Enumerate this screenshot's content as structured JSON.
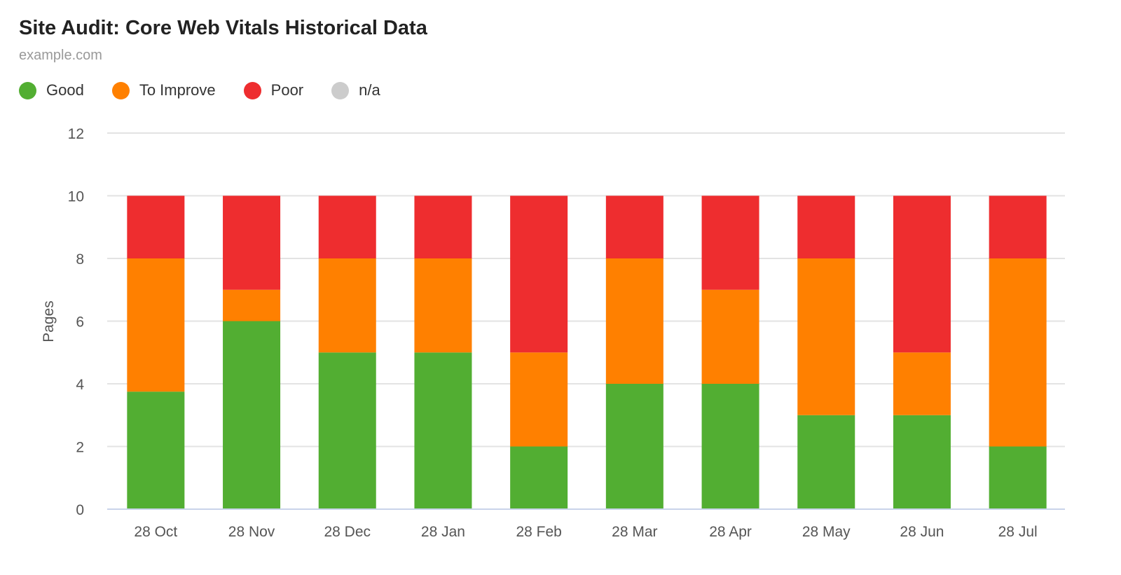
{
  "chart_data": {
    "type": "bar",
    "stacked": true,
    "title": "Site Audit: Core Web Vitals Historical Data",
    "subtitle": "example.com",
    "ylabel": "Pages",
    "xlabel": "",
    "ylim": [
      0,
      12
    ],
    "yticks": [
      0,
      2,
      4,
      6,
      8,
      10,
      12
    ],
    "grid": true,
    "legend_position": "top-left",
    "categories": [
      "28 Oct",
      "28 Nov",
      "28 Dec",
      "28 Jan",
      "28 Feb",
      "28 Mar",
      "28 Apr",
      "28 May",
      "28 Jun",
      "28 Jul"
    ],
    "series": [
      {
        "name": "Good",
        "color": "#52ae32",
        "values": [
          3.75,
          6,
          5,
          5,
          2,
          4,
          4,
          3,
          3,
          2
        ]
      },
      {
        "name": "To Improve",
        "color": "#ff8000",
        "values": [
          4.25,
          1,
          3,
          3,
          3,
          4,
          3,
          5,
          2,
          6
        ]
      },
      {
        "name": "Poor",
        "color": "#ee2d2f",
        "values": [
          2,
          3,
          2,
          2,
          5,
          2,
          3,
          2,
          5,
          2
        ]
      },
      {
        "name": "n/a",
        "color": "#cccccc",
        "values": [
          0,
          0,
          0,
          0,
          0,
          0,
          0,
          0,
          0,
          0
        ]
      }
    ]
  }
}
